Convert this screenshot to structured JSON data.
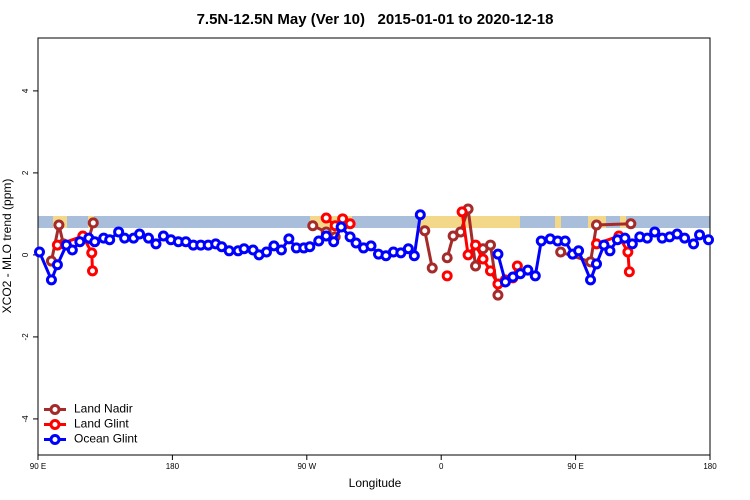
{
  "chart_data": {
    "type": "line",
    "title": "7.5N-12.5N May (Ver 10)   2015-01-01 to 2020-12-18",
    "x_label": "Longitude",
    "y_label": "XCO2 - MLO trend (ppm)",
    "xlim": [
      90,
      540
    ],
    "xticks": [
      {
        "value": 90,
        "label": "90 E"
      },
      {
        "value": 180,
        "label": "180"
      },
      {
        "value": 270,
        "label": "90 W"
      },
      {
        "value": 360,
        "label": "0"
      },
      {
        "value": 450,
        "label": "90 E"
      },
      {
        "value": 540,
        "label": "180"
      }
    ],
    "ylim": [
      -4.88,
      5.29
    ],
    "yticks": [
      -4,
      -2,
      0,
      2,
      4
    ],
    "legend": "bottom-left",
    "series": [
      {
        "name": "Land Nadir",
        "color": "#a52a2a",
        "x": [
          99,
          104,
          107,
          115,
          124,
          127,
          200,
          274,
          283,
          289,
          294,
          320,
          349,
          354,
          359,
          364,
          368,
          373,
          378,
          383,
          388,
          393,
          398,
          420,
          440,
          460,
          464,
          487
        ],
        "values": [
          -0.15,
          0.73,
          0.27,
          null,
          0.39,
          0.78,
          null,
          0.71,
          0.56,
          0.44,
          0.71,
          null,
          0.59,
          -0.32,
          null,
          -0.07,
          0.46,
          0.56,
          1.12,
          -0.27,
          0.15,
          0.24,
          -0.98,
          null,
          0.07,
          -0.17,
          0.73,
          0.76
        ]
      },
      {
        "name": "Land Glint",
        "color": "#ff0000",
        "x": [
          103,
          120,
          126,
          126.5,
          200,
          283,
          289,
          294,
          299,
          330,
          364,
          369,
          374,
          378,
          383,
          388,
          393,
          398,
          403,
          408,
          411,
          440,
          464,
          479,
          485,
          486
        ],
        "values": [
          0.24,
          0.46,
          0.05,
          -0.39,
          null,
          0.9,
          0.71,
          0.88,
          0.76,
          null,
          -0.51,
          null,
          1.05,
          0,
          0.24,
          -0.1,
          -0.39,
          -0.71,
          -0.61,
          -0.56,
          -0.27,
          null,
          0.27,
          0.46,
          0.07,
          -0.41
        ]
      },
      {
        "name": "Ocean Glint",
        "color": "#0000ff",
        "x": [
          91,
          99,
          103,
          109,
          113,
          118,
          124,
          128,
          134,
          138,
          144,
          148,
          154,
          158,
          164,
          169,
          174,
          179,
          184,
          189,
          194,
          199,
          204,
          209,
          213,
          218,
          224,
          228,
          234,
          238,
          243,
          248,
          253,
          258,
          263,
          268,
          272,
          278,
          283,
          288,
          293,
          299,
          303,
          308,
          313,
          318,
          323,
          328,
          333,
          338,
          342,
          346,
          370,
          398,
          403,
          408,
          413,
          418,
          423,
          427,
          433,
          438,
          443,
          448,
          452,
          460,
          464,
          469,
          473,
          478,
          483,
          488,
          493,
          498,
          503,
          508,
          513,
          518,
          523,
          529,
          533,
          539
        ],
        "values": [
          0.07,
          -0.61,
          -0.24,
          0.24,
          0.12,
          0.32,
          0.41,
          0.32,
          0.41,
          0.37,
          0.56,
          0.41,
          0.41,
          0.51,
          0.41,
          0.27,
          0.46,
          0.37,
          0.32,
          0.32,
          0.24,
          0.24,
          0.24,
          0.27,
          0.2,
          0.1,
          0.1,
          0.15,
          0.12,
          0,
          0.07,
          0.22,
          0.12,
          0.39,
          0.17,
          0.17,
          0.2,
          0.34,
          0.46,
          0.32,
          0.68,
          0.44,
          0.29,
          0.17,
          0.22,
          0.02,
          -0.02,
          0.07,
          0.05,
          0.15,
          -0.02,
          0.98,
          null,
          0.02,
          -0.66,
          -0.54,
          -0.46,
          -0.37,
          -0.51,
          0.34,
          0.39,
          0.34,
          0.34,
          0.02,
          0.1,
          -0.61,
          -0.22,
          0.24,
          0.1,
          0.37,
          0.41,
          0.27,
          0.44,
          0.41,
          0.56,
          0.41,
          0.44,
          0.51,
          0.41,
          0.27,
          0.49,
          0.37
        ]
      }
    ]
  }
}
